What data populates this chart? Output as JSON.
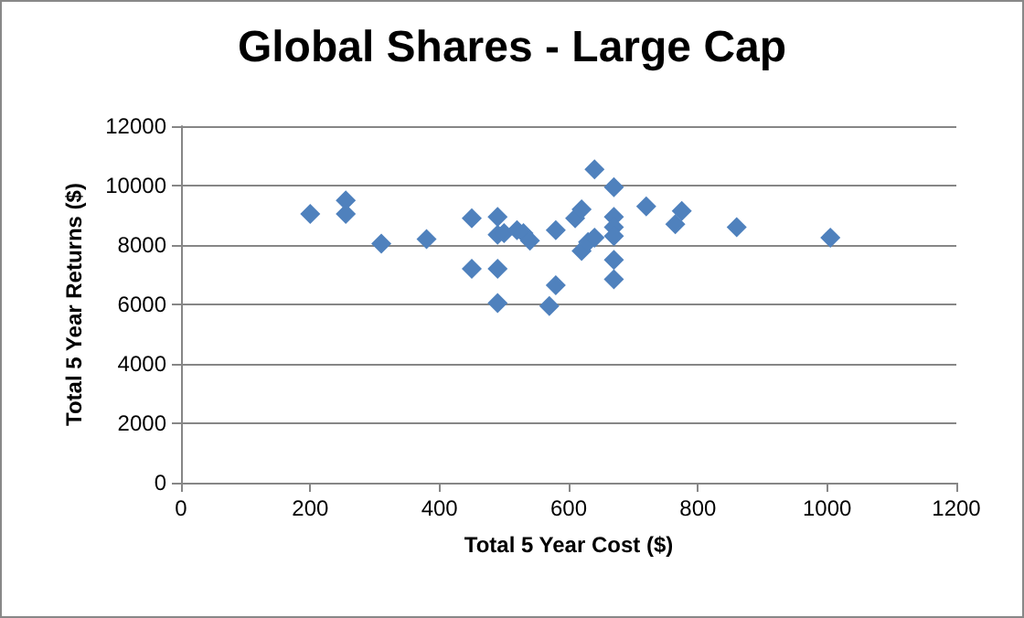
{
  "chart_data": {
    "type": "scatter",
    "title": "Global Shares - Large Cap",
    "xlabel": "Total 5 Year Cost ($)",
    "ylabel": "Total 5 Year Returns ($)",
    "x": [
      200,
      255,
      255,
      310,
      380,
      450,
      450,
      490,
      490,
      490,
      490,
      500,
      520,
      530,
      540,
      570,
      580,
      580,
      610,
      620,
      620,
      630,
      640,
      640,
      670,
      670,
      670,
      670,
      670,
      670,
      720,
      765,
      775,
      860,
      1005
    ],
    "values": [
      9050,
      9500,
      9050,
      8050,
      8200,
      8900,
      7200,
      8950,
      8350,
      7200,
      6050,
      8400,
      8500,
      8400,
      8150,
      5950,
      6650,
      8500,
      8900,
      9200,
      7800,
      8100,
      8250,
      10550,
      9950,
      8950,
      8600,
      8300,
      7500,
      6850,
      9300,
      8700,
      9150,
      8600,
      8250
    ],
    "color": "#4f81bd",
    "marker": "diamond",
    "xlim": [
      0,
      1200
    ],
    "xticks": [
      0,
      200,
      400,
      600,
      800,
      1000,
      1200
    ],
    "ylim": [
      0,
      12000
    ],
    "yticks": [
      0,
      2000,
      4000,
      6000,
      8000,
      10000,
      12000
    ],
    "grid": "y"
  }
}
